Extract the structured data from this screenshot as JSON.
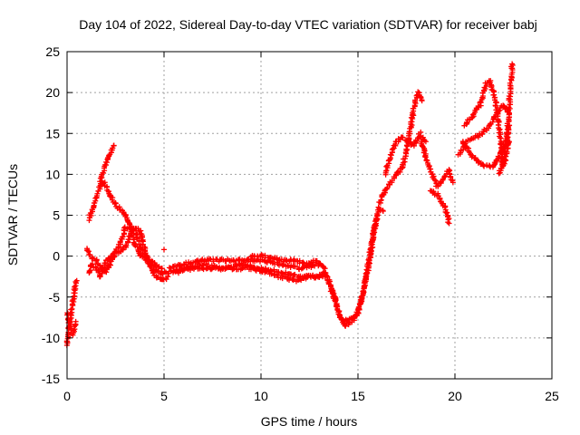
{
  "chart_data": {
    "type": "scatter",
    "title": "Day 104 of 2022, Sidereal Day-to-day VTEC variation (SDTVAR) for receiver babj",
    "xlabel": "GPS time / hours",
    "ylabel": "SDTVAR / TECUs",
    "xlim": [
      0,
      25
    ],
    "ylim": [
      -15,
      25
    ],
    "xticks": [
      "0",
      "5",
      "10",
      "15",
      "20",
      "25"
    ],
    "yticks": [
      "-15",
      "-10",
      "-5",
      "0",
      "5",
      "10",
      "15",
      "20",
      "25"
    ],
    "grid": true,
    "marker": "plus",
    "series": [
      {
        "name": "SDTVAR",
        "color": "#ff0000",
        "tracks": [
          [
            [
              0.0,
              -11
            ],
            [
              0.1,
              -9
            ],
            [
              0.2,
              -7
            ],
            [
              0.3,
              -5.5
            ],
            [
              0.4,
              -4
            ],
            [
              0.5,
              -3
            ]
          ],
          [
            [
              0.0,
              -7
            ],
            [
              0.15,
              -8.5
            ],
            [
              0.3,
              -9.5
            ],
            [
              0.45,
              -8
            ]
          ],
          [
            [
              1.1,
              -2
            ],
            [
              1.3,
              -1
            ],
            [
              1.5,
              -1.5
            ],
            [
              1.7,
              -2.5
            ],
            [
              1.9,
              -1
            ],
            [
              2.2,
              0
            ],
            [
              2.5,
              0.5
            ],
            [
              2.8,
              0.5
            ],
            [
              3.1,
              1.5
            ],
            [
              3.4,
              3.5
            ],
            [
              3.8,
              3
            ],
            [
              4.0,
              1
            ],
            [
              4.3,
              -1.5
            ],
            [
              4.6,
              -2.5
            ],
            [
              4.9,
              -3
            ],
            [
              5.2,
              -2.5
            ]
          ],
          [
            [
              1.1,
              4.5
            ],
            [
              1.3,
              5.5
            ],
            [
              1.5,
              7
            ],
            [
              1.7,
              8.5
            ],
            [
              1.9,
              9
            ],
            [
              2.1,
              8
            ],
            [
              2.3,
              7
            ],
            [
              2.6,
              6
            ],
            [
              2.9,
              5.5
            ],
            [
              3.2,
              4
            ],
            [
              3.5,
              1.5
            ],
            [
              3.8,
              0
            ],
            [
              4.1,
              -0.5
            ],
            [
              4.5,
              -1.5
            ],
            [
              4.8,
              -2
            ],
            [
              5.1,
              -2
            ]
          ],
          [
            [
              1.0,
              1
            ],
            [
              1.2,
              0
            ],
            [
              1.5,
              -0.5
            ],
            [
              1.8,
              -1.5
            ],
            [
              2.0,
              -2
            ],
            [
              2.3,
              -0.5
            ],
            [
              2.6,
              1
            ],
            [
              2.9,
              2.5
            ],
            [
              3.0,
              3.5
            ],
            [
              3.3,
              3.5
            ],
            [
              3.6,
              2.5
            ],
            [
              3.9,
              0.5
            ],
            [
              4.2,
              -0.5
            ],
            [
              4.6,
              -1
            ],
            [
              4.9,
              -1.5
            ]
          ],
          [
            [
              1.7,
              9
            ],
            [
              1.9,
              10.5
            ],
            [
              2.1,
              12
            ],
            [
              2.3,
              13
            ],
            [
              2.4,
              13.5
            ]
          ],
          [
            [
              5.2,
              -2
            ],
            [
              6,
              -1.5
            ],
            [
              7,
              -1
            ],
            [
              8,
              -1.5
            ],
            [
              9,
              -1
            ],
            [
              10,
              -1.5
            ],
            [
              11,
              -2
            ],
            [
              12,
              -2.5
            ],
            [
              13,
              -2.5
            ],
            [
              13.3,
              -2
            ]
          ],
          [
            [
              5.3,
              -1.5
            ],
            [
              6,
              -1
            ],
            [
              7,
              -0.5
            ],
            [
              8,
              -0.5
            ],
            [
              9,
              -0.5
            ],
            [
              10,
              -0.5
            ],
            [
              11,
              -1
            ],
            [
              12,
              -1.5
            ],
            [
              13,
              -1
            ]
          ],
          [
            [
              5.5,
              -2
            ],
            [
              6.5,
              -1.5
            ],
            [
              7.5,
              -1.5
            ],
            [
              8.5,
              -1.5
            ],
            [
              9.5,
              -1.5
            ],
            [
              10.3,
              -2
            ],
            [
              11,
              -2.5
            ],
            [
              11.8,
              -3
            ],
            [
              12.5,
              -2.5
            ],
            [
              13.3,
              -2.5
            ]
          ],
          [
            [
              9.5,
              0
            ],
            [
              10.2,
              0
            ],
            [
              11,
              -0.5
            ],
            [
              11.7,
              -0.5
            ],
            [
              12.3,
              -1
            ],
            [
              12.8,
              -0.5
            ],
            [
              13.3,
              -1.5
            ]
          ],
          [
            [
              5.0,
              0.8
            ]
          ],
          [
            [
              13.3,
              -2
            ],
            [
              13.6,
              -4
            ],
            [
              13.9,
              -6
            ],
            [
              14.1,
              -7.5
            ],
            [
              14.4,
              -8
            ],
            [
              14.7,
              -7.5
            ],
            [
              15.0,
              -7
            ],
            [
              15.2,
              -5
            ],
            [
              15.5,
              -2
            ],
            [
              15.7,
              1
            ],
            [
              15.9,
              4
            ],
            [
              16.1,
              6
            ],
            [
              16.3,
              5.5
            ]
          ],
          [
            [
              13.5,
              -3
            ],
            [
              13.8,
              -5
            ],
            [
              14.0,
              -7
            ],
            [
              14.3,
              -8.5
            ],
            [
              14.6,
              -8
            ],
            [
              14.9,
              -7.5
            ],
            [
              15.1,
              -6
            ],
            [
              15.3,
              -4
            ],
            [
              15.6,
              0
            ],
            [
              15.8,
              3
            ],
            [
              16.0,
              5
            ]
          ],
          [
            [
              16.1,
              6.5
            ],
            [
              16.4,
              8
            ],
            [
              16.7,
              9
            ],
            [
              17.0,
              10
            ],
            [
              17.3,
              11
            ],
            [
              17.5,
              13
            ],
            [
              17.7,
              15.5
            ],
            [
              17.9,
              18.5
            ],
            [
              18.1,
              20
            ],
            [
              18.3,
              19
            ]
          ],
          [
            [
              16.4,
              10
            ],
            [
              16.7,
              12.5
            ],
            [
              17.0,
              14
            ],
            [
              17.3,
              14.5
            ],
            [
              17.6,
              14
            ],
            [
              17.9,
              13.5
            ],
            [
              18.2,
              15
            ],
            [
              18.5,
              14
            ]
          ],
          [
            [
              18.3,
              14
            ],
            [
              18.5,
              12
            ],
            [
              18.8,
              10
            ],
            [
              19.1,
              8.5
            ],
            [
              19.4,
              9.5
            ],
            [
              19.7,
              10.5
            ],
            [
              19.9,
              9
            ]
          ],
          [
            [
              18.7,
              8
            ],
            [
              19.1,
              7.5
            ],
            [
              19.5,
              6
            ],
            [
              19.7,
              4
            ]
          ],
          [
            [
              20.2,
              12.5
            ],
            [
              20.6,
              14
            ],
            [
              21.0,
              14.5
            ],
            [
              21.4,
              15
            ],
            [
              21.8,
              16
            ],
            [
              22.2,
              17.5
            ],
            [
              22.5,
              18.5
            ],
            [
              22.8,
              17.5
            ]
          ],
          [
            [
              20.4,
              14
            ],
            [
              20.8,
              12.5
            ],
            [
              21.2,
              11.5
            ],
            [
              21.6,
              11
            ],
            [
              22.0,
              11
            ],
            [
              22.3,
              12.5
            ],
            [
              22.6,
              13.5
            ],
            [
              22.8,
              14
            ]
          ],
          [
            [
              20.5,
              16
            ],
            [
              20.9,
              17
            ],
            [
              21.3,
              18.5
            ],
            [
              21.6,
              21
            ],
            [
              21.8,
              21.5
            ],
            [
              22.1,
              19
            ],
            [
              22.3,
              15
            ],
            [
              22.5,
              11
            ],
            [
              22.7,
              13
            ],
            [
              22.8,
              16
            ]
          ],
          [
            [
              22.3,
              10
            ],
            [
              22.5,
              12
            ],
            [
              22.7,
              15
            ],
            [
              22.85,
              20
            ],
            [
              22.95,
              23.5
            ]
          ]
        ]
      }
    ]
  }
}
